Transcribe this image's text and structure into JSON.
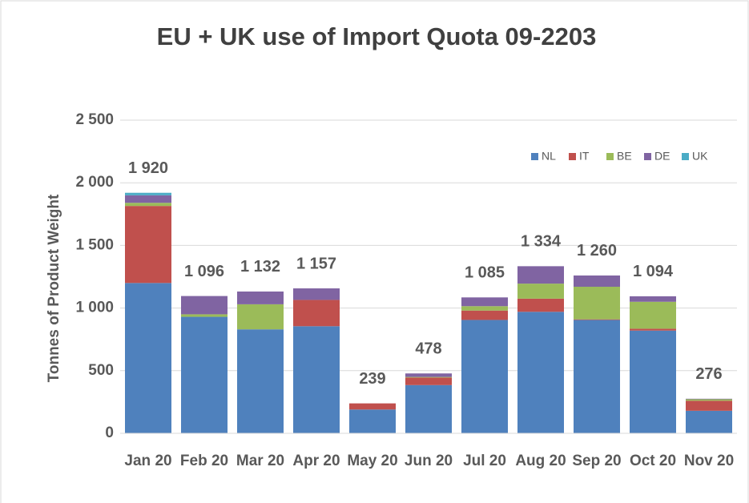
{
  "chart_data": {
    "type": "stacked_bar",
    "title": "EU + UK use of Import Quota 09-2203",
    "y_label": "Tonnes of Product Weight",
    "categories": [
      "Jan 20",
      "Feb 20",
      "Mar 20",
      "Apr 20",
      "May 20",
      "Jun 20",
      "Jul 20",
      "Aug 20",
      "Sep 20",
      "Oct 20",
      "Nov 20"
    ],
    "series": [
      {
        "name": "NL",
        "color": "#4f81bd",
        "values": [
          1200,
          930,
          830,
          855,
          190,
          385,
          905,
          970,
          905,
          820,
          180
        ]
      },
      {
        "name": "IT",
        "color": "#c0504d",
        "values": [
          615,
          0,
          0,
          210,
          49,
          60,
          75,
          105,
          5,
          15,
          80
        ]
      },
      {
        "name": "BE",
        "color": "#9bbb59",
        "values": [
          25,
          20,
          200,
          0,
          0,
          5,
          35,
          120,
          260,
          215,
          12
        ]
      },
      {
        "name": "DE",
        "color": "#8064a2",
        "values": [
          60,
          146,
          102,
          92,
          0,
          28,
          70,
          139,
          90,
          44,
          4
        ]
      },
      {
        "name": "UK",
        "color": "#4bacc6",
        "values": [
          20,
          0,
          0,
          0,
          0,
          0,
          0,
          0,
          0,
          0,
          0
        ]
      }
    ],
    "totals": [
      1920,
      1096,
      1132,
      1157,
      239,
      478,
      1085,
      1334,
      1260,
      1094,
      276
    ],
    "total_labels": [
      "1 920",
      "1 096",
      "1 132",
      "1 157",
      "239",
      "478",
      "1 085",
      "1 334",
      "1 260",
      "1 094",
      "276"
    ],
    "ylim": [
      0,
      2500
    ],
    "yticks": [
      0,
      500,
      {
        "value": 1000,
        "label": "1 000"
      },
      {
        "value": 1500,
        "label": "1 500"
      },
      {
        "value": 2000,
        "label": "2 000"
      },
      {
        "value": 2500,
        "label": "2 500"
      }
    ],
    "grid": true,
    "legend": "top-right"
  }
}
